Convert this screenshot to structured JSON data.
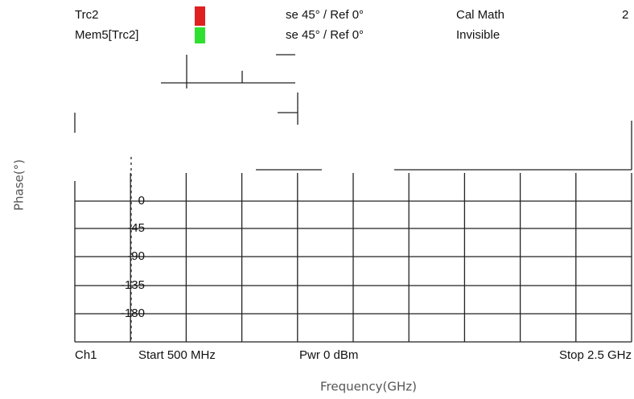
{
  "header": {
    "rows": [
      {
        "trace": "Trc2",
        "scale": "se  45° /  Ref 0°",
        "status": "Cal Math",
        "channel": "2"
      },
      {
        "trace": "Mem5[Trc2]",
        "scale": "se  45° /  Ref 0°",
        "status": "Invisible"
      }
    ]
  },
  "y_labels": [
    "0",
    "-45",
    "-90",
    "-135",
    "-180"
  ],
  "footer": {
    "channel": "Ch1",
    "start": "Start  500 MHz",
    "power": "Pwr  0 dBm",
    "stop": "Stop  2.5 GHz"
  },
  "x_axis_label": "Frequency(GHz)",
  "y_axis_label": "Phase(°)"
}
